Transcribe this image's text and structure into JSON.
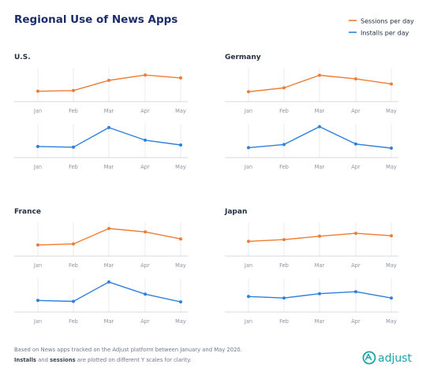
{
  "title": "Regional Use of News Apps",
  "legend": {
    "sessions_label": "Sessions per day",
    "installs_label": "Installs per day"
  },
  "colors": {
    "sessions": "#f07c33",
    "installs": "#2f7fdc",
    "title": "#1d2c6b",
    "text": "#233043",
    "grid": "#dfe3ea",
    "axis": "#c6ccd6",
    "tick": "#8a93a3",
    "brand": "#1aa5a9"
  },
  "footer": {
    "line1": "Based on News apps tracked on the Adjust platform between January and May 2020.",
    "line2_bold1": "Installs",
    "line2_mid": " and ",
    "line2_bold2": "sessions",
    "line2_end": " are plotted on different Y scales for clarity."
  },
  "brand": {
    "name": "adjust"
  },
  "chart_data": [
    {
      "type": "line",
      "title": "U.S.",
      "categories": [
        "Jan",
        "Feb",
        "Mar",
        "Apr",
        "May"
      ],
      "series": [
        {
          "name": "Sessions per day",
          "values": [
            4.3,
            4.6,
            8.8,
            11.0,
            9.8
          ]
        },
        {
          "name": "Installs per day",
          "values": [
            4.6,
            4.3,
            12.4,
            7.2,
            5.2
          ]
        }
      ]
    },
    {
      "type": "line",
      "title": "Germany",
      "categories": [
        "Jan",
        "Feb",
        "Mar",
        "Apr",
        "May"
      ],
      "series": [
        {
          "name": "Sessions per day",
          "values": [
            4.1,
            5.7,
            10.9,
            9.4,
            7.3
          ]
        },
        {
          "name": "Installs per day",
          "values": [
            4.1,
            5.4,
            12.8,
            5.6,
            3.9
          ]
        }
      ]
    },
    {
      "type": "line",
      "title": "France",
      "categories": [
        "Jan",
        "Feb",
        "Mar",
        "Apr",
        "May"
      ],
      "series": [
        {
          "name": "Sessions per day",
          "values": [
            4.6,
            5.0,
            11.4,
            10.0,
            7.1
          ]
        },
        {
          "name": "Installs per day",
          "values": [
            4.8,
            4.4,
            12.4,
            7.4,
            4.2
          ]
        }
      ]
    },
    {
      "type": "line",
      "title": "Japan",
      "categories": [
        "Jan",
        "Feb",
        "Mar",
        "Apr",
        "May"
      ],
      "series": [
        {
          "name": "Sessions per day",
          "values": [
            6.1,
            6.8,
            8.2,
            9.4,
            8.4
          ]
        },
        {
          "name": "Installs per day",
          "values": [
            6.4,
            5.8,
            7.6,
            8.4,
            5.8
          ]
        }
      ]
    }
  ]
}
